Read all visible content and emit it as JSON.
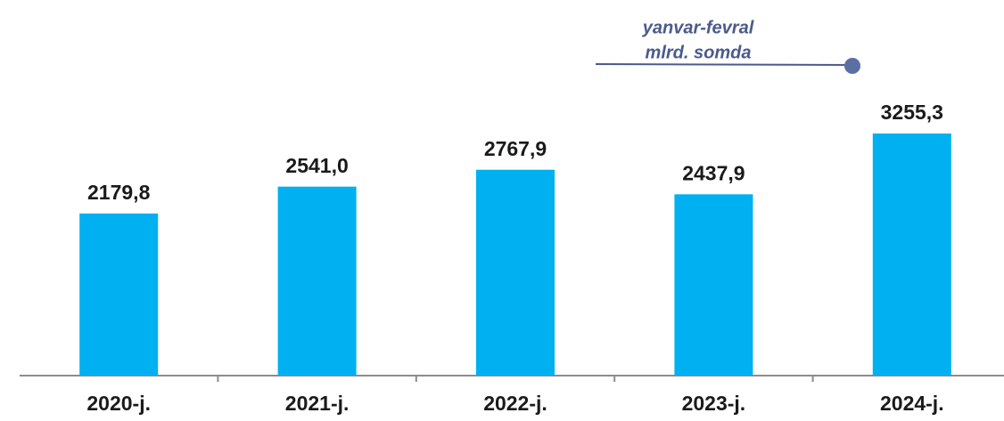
{
  "chart_data": {
    "type": "bar",
    "annotations": [
      "yanvar-fevral",
      "mlrd. somda"
    ],
    "categories": [
      "2020-j.",
      "2021-j.",
      "2022-j.",
      "2023-j.",
      "2024-j."
    ],
    "values": [
      2179.8,
      2541.0,
      2767.9,
      2437.9,
      3255.3
    ],
    "value_labels": [
      "2179,8",
      "2541,0",
      "2767,9",
      "2437,9",
      "3255,3"
    ],
    "color": "#00b0f0"
  }
}
